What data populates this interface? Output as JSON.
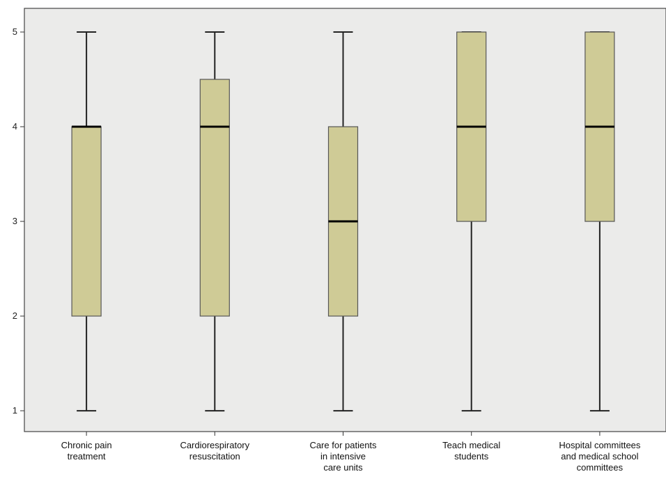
{
  "chart_data": {
    "type": "box",
    "title": "",
    "xlabel": "",
    "ylabel": "",
    "ylim": [
      0.78,
      5.25
    ],
    "yticks": [
      1,
      2,
      3,
      4,
      5
    ],
    "grid": false,
    "colors": {
      "box_fill": "#cfcb96",
      "plot_bg": "#ebebea",
      "line": "#222222"
    },
    "categories": [
      [
        "Chronic pain",
        "treatment"
      ],
      [
        "Cardiorespiratory",
        "resuscitation"
      ],
      [
        "Care for patients",
        "in intensive",
        "care units"
      ],
      [
        "Teach medical",
        "students"
      ],
      [
        "Hospital committees",
        "and medical school",
        "committees"
      ]
    ],
    "boxes": [
      {
        "min": 1,
        "q1": 2,
        "median": 4,
        "q3": 4,
        "max": 5
      },
      {
        "min": 1,
        "q1": 2,
        "median": 4,
        "q3": 4.5,
        "max": 5
      },
      {
        "min": 1,
        "q1": 2,
        "median": 3,
        "q3": 4,
        "max": 5
      },
      {
        "min": 1,
        "q1": 3,
        "median": 4,
        "q3": 5,
        "max": 5
      },
      {
        "min": 1,
        "q1": 3,
        "median": 4,
        "q3": 5,
        "max": 5
      }
    ]
  }
}
